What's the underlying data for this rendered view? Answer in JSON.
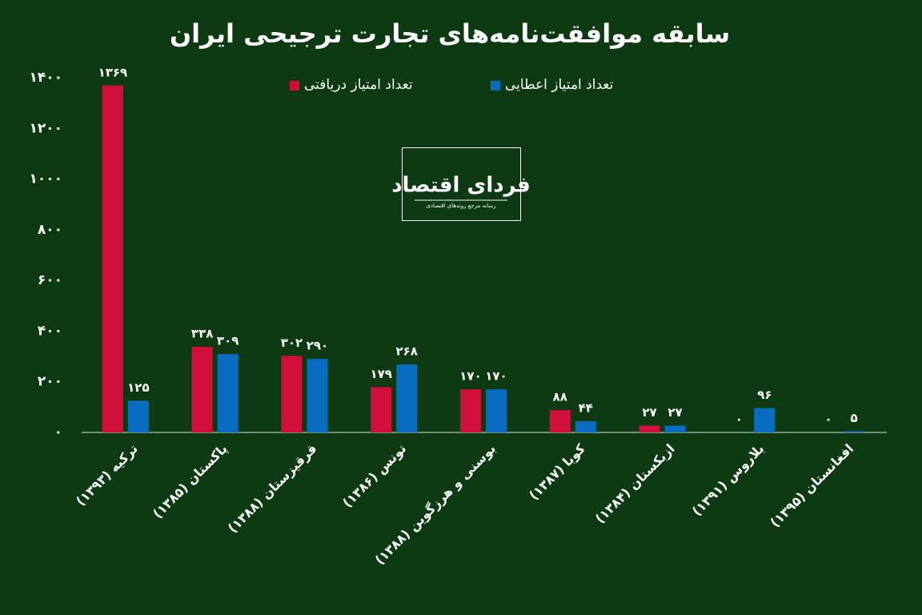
{
  "chart_data": {
    "type": "bar",
    "title": "سابقه موافقت‌نامه‌های تجارت ترجیحی ایران",
    "logo_title": "فردای اقتصاد",
    "logo_subtitle": "رسانه مرجع روندهای اقتصادی",
    "categories": [
      "ترکیه (۱۳۹۳)",
      "پاکستان (۱۳۸۵)",
      "قرقیزستان (۱۳۸۸)",
      "تونس (۱۳۸۶)",
      "بوسنی و هرزگوین (۱۳۸۸)",
      "کوبا (۱۳۸۷)",
      "ازبکستان (۱۳۸۴)",
      "بلاروس (۱۳۹۱)",
      "افغانستان (۱۳۹۵)"
    ],
    "series": [
      {
        "name": "تعداد امتیاز دریافتی",
        "color": "#d0103a",
        "values": [
          1369,
          338,
          302,
          179,
          170,
          88,
          27,
          0,
          0
        ],
        "value_labels": [
          "۱۳۶۹",
          "۳۳۸",
          "۳۰۲",
          "۱۷۹",
          "۱۷۰",
          "۸۸",
          "۲۷",
          "۰",
          "۰"
        ]
      },
      {
        "name": "تعداد امتیاز اعطایی",
        "color": "#0a6cc0",
        "values": [
          125,
          309,
          290,
          268,
          170,
          44,
          27,
          96,
          5
        ],
        "value_labels": [
          "۱۲۵",
          "۳۰۹",
          "۲۹۰",
          "۲۶۸",
          "۱۷۰",
          "۴۴",
          "۲۷",
          "۹۶",
          "۵"
        ]
      }
    ],
    "ylim": [
      0,
      1400
    ],
    "yticks": [
      {
        "value": 0,
        "label": "۰"
      },
      {
        "value": 200,
        "label": "۲۰۰"
      },
      {
        "value": 400,
        "label": "۴۰۰"
      },
      {
        "value": 600,
        "label": "۶۰۰"
      },
      {
        "value": 800,
        "label": "۸۰۰"
      },
      {
        "value": 1000,
        "label": "۱۰۰۰"
      },
      {
        "value": 1200,
        "label": "۱۲۰۰"
      },
      {
        "value": 1400,
        "label": "۱۴۰۰"
      }
    ],
    "grid": false
  }
}
